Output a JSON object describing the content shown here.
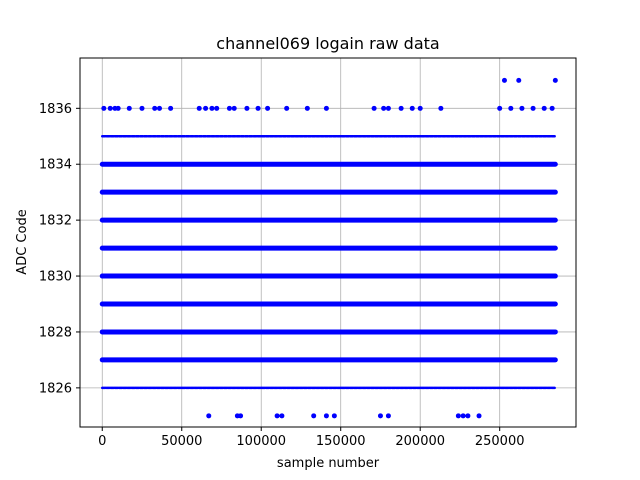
{
  "chart_data": {
    "type": "scatter",
    "title": "channel069 logain raw data",
    "xlabel": "sample number",
    "ylabel": "ADC Code",
    "xlim": [
      -14000,
      298000
    ],
    "ylim": [
      1824.6,
      1837.8
    ],
    "x_ticks": [
      0,
      50000,
      100000,
      150000,
      200000,
      250000
    ],
    "y_ticks": [
      1826,
      1828,
      1830,
      1832,
      1834,
      1836
    ],
    "grid": true,
    "marker_color": "#0000ff",
    "x_max": 285000,
    "series": [
      {
        "dense_levels": [
          1827,
          1828,
          1829,
          1830,
          1831,
          1832,
          1833,
          1834,
          1835,
          1826
        ],
        "sparse_points": {
          "1825": [
            67000,
            85000,
            87000,
            110000,
            113000,
            133000,
            141000,
            146000,
            175000,
            180000,
            224000,
            227000,
            230000,
            237000
          ],
          "1836": [
            1000,
            5000,
            8000,
            10000,
            17000,
            25000,
            33000,
            36000,
            43000,
            61000,
            65000,
            69000,
            72000,
            80000,
            83000,
            91000,
            98000,
            104000,
            116000,
            129000,
            141000,
            171000,
            177000,
            180000,
            188000,
            195000,
            200000,
            213000,
            250000,
            257000,
            264000,
            271000,
            278000,
            283000
          ],
          "1837": [
            253000,
            262000,
            285000
          ]
        }
      }
    ]
  }
}
